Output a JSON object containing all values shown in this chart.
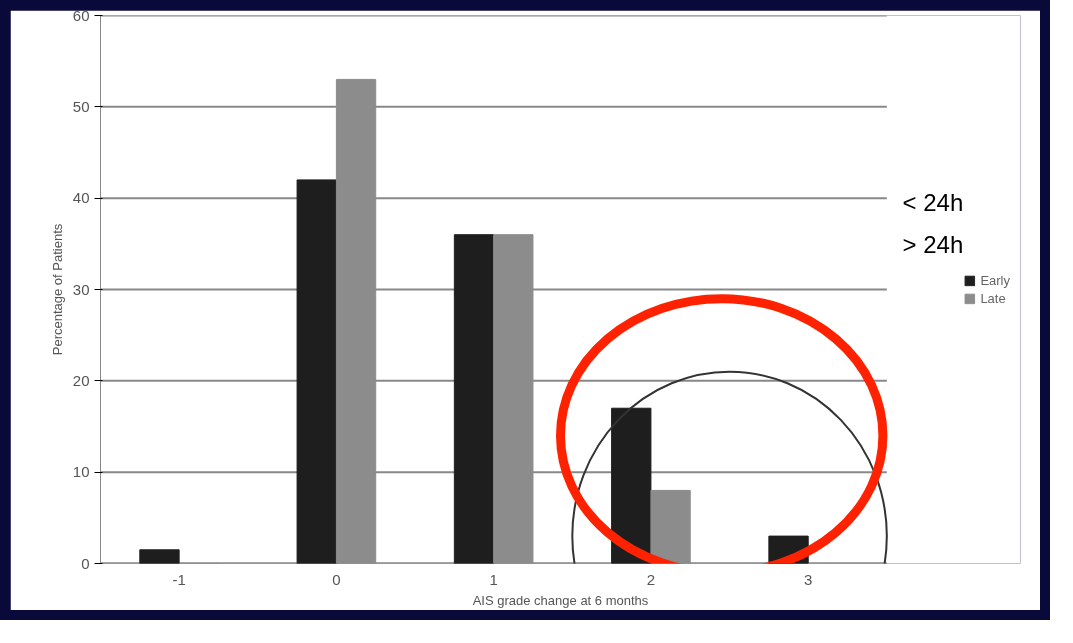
{
  "chart_data": {
    "type": "bar",
    "xlabel": "AIS grade change at 6 months",
    "ylabel": "Percentage of Patients",
    "categories": [
      "-1",
      "0",
      "1",
      "2",
      "3"
    ],
    "series": [
      {
        "name": "Early",
        "color": "#1e1e1e",
        "values": [
          1.5,
          42,
          36,
          17,
          3
        ]
      },
      {
        "name": "Late",
        "color": "#8c8c8c",
        "values": [
          0,
          53,
          36,
          8,
          null
        ]
      }
    ],
    "ylim": [
      0,
      60
    ],
    "yticks": [
      0,
      10,
      20,
      30,
      40,
      50,
      60
    ],
    "grid": "y",
    "legend": "right",
    "annotations": [
      "< 24h",
      "> 24h"
    ]
  }
}
